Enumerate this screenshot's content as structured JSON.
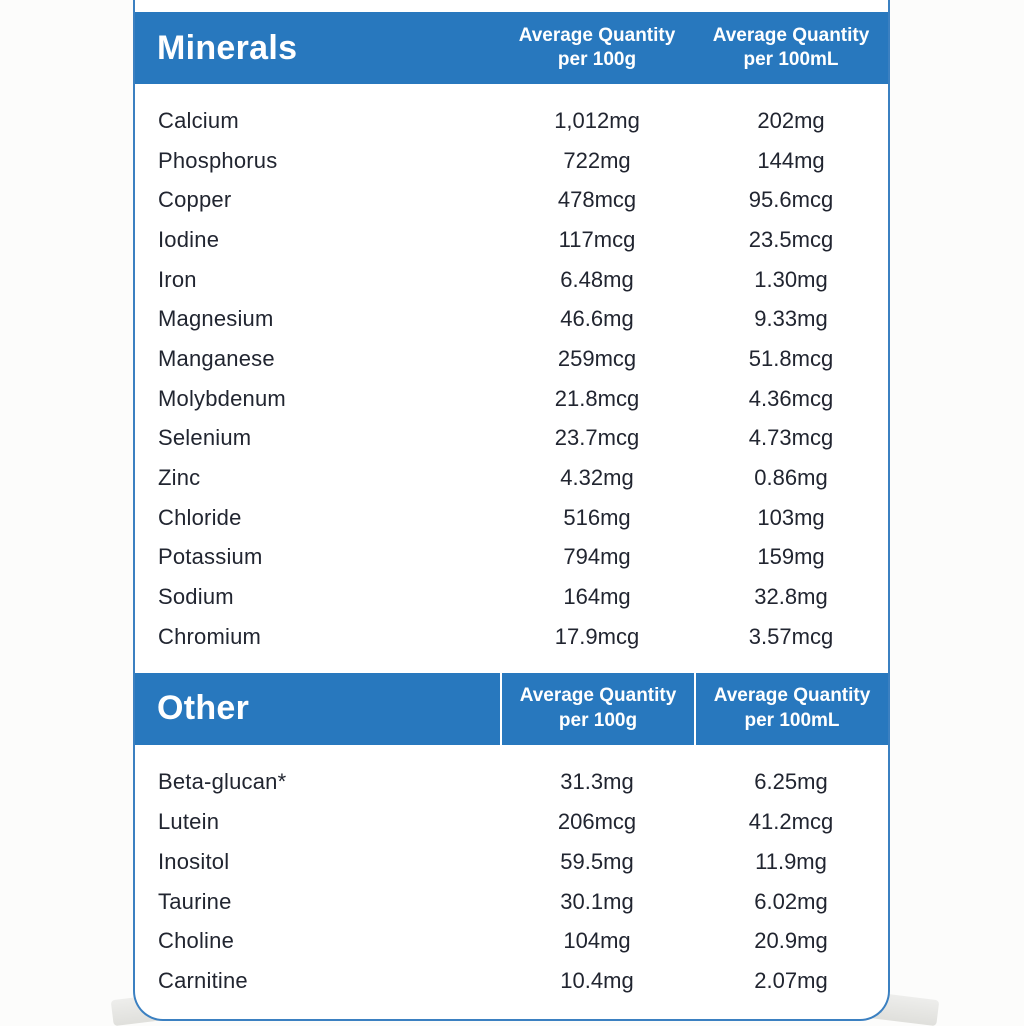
{
  "colors": {
    "header_blue": "#2878be",
    "border_blue": "#3b80c1",
    "header_text": "#ffffff",
    "row_text": "#212530"
  },
  "sections": [
    {
      "title": "Minerals",
      "columns": {
        "col1_line1": "Average Quantity",
        "col1_line2": "per 100g",
        "col2_line1": "Average Quantity",
        "col2_line2": "per 100mL"
      },
      "rows": [
        {
          "name": "Calcium",
          "per_100g": "1,012mg",
          "per_100ml": "202mg"
        },
        {
          "name": "Phosphorus",
          "per_100g": "722mg",
          "per_100ml": "144mg"
        },
        {
          "name": "Copper",
          "per_100g": "478mcg",
          "per_100ml": "95.6mcg"
        },
        {
          "name": "Iodine",
          "per_100g": "117mcg",
          "per_100ml": "23.5mcg"
        },
        {
          "name": "Iron",
          "per_100g": "6.48mg",
          "per_100ml": "1.30mg"
        },
        {
          "name": "Magnesium",
          "per_100g": "46.6mg",
          "per_100ml": "9.33mg"
        },
        {
          "name": "Manganese",
          "per_100g": "259mcg",
          "per_100ml": "51.8mcg"
        },
        {
          "name": "Molybdenum",
          "per_100g": "21.8mcg",
          "per_100ml": "4.36mcg"
        },
        {
          "name": "Selenium",
          "per_100g": "23.7mcg",
          "per_100ml": "4.73mcg"
        },
        {
          "name": "Zinc",
          "per_100g": "4.32mg",
          "per_100ml": "0.86mg"
        },
        {
          "name": "Chloride",
          "per_100g": "516mg",
          "per_100ml": "103mg"
        },
        {
          "name": "Potassium",
          "per_100g": "794mg",
          "per_100ml": "159mg"
        },
        {
          "name": "Sodium",
          "per_100g": "164mg",
          "per_100ml": "32.8mg"
        },
        {
          "name": "Chromium",
          "per_100g": "17.9mcg",
          "per_100ml": "3.57mcg"
        }
      ]
    },
    {
      "title": "Other",
      "columns": {
        "col1_line1": "Average Quantity",
        "col1_line2": "per 100g",
        "col2_line1": "Average Quantity",
        "col2_line2": "per 100mL"
      },
      "rows": [
        {
          "name": "Beta-glucan*",
          "per_100g": "31.3mg",
          "per_100ml": "6.25mg"
        },
        {
          "name": "Lutein",
          "per_100g": "206mcg",
          "per_100ml": "41.2mcg"
        },
        {
          "name": "Inositol",
          "per_100g": "59.5mg",
          "per_100ml": "11.9mg"
        },
        {
          "name": "Taurine",
          "per_100g": "30.1mg",
          "per_100ml": "6.02mg"
        },
        {
          "name": "Choline",
          "per_100g": "104mg",
          "per_100ml": "20.9mg"
        },
        {
          "name": "Carnitine",
          "per_100g": "10.4mg",
          "per_100ml": "2.07mg"
        }
      ]
    }
  ]
}
